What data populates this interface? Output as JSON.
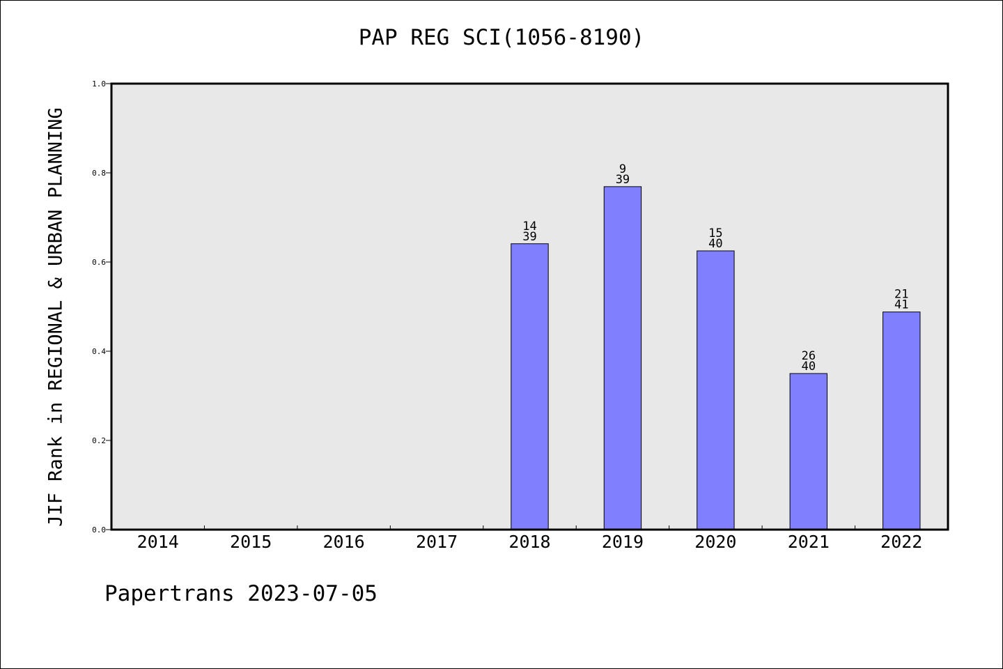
{
  "chart_data": {
    "type": "bar",
    "title": "PAP REG SCI(1056-8190)",
    "ylabel": "JIF Rank in REGIONAL & URBAN PLANNING",
    "xlabel": "",
    "footer": "Papertrans 2023-07-05",
    "categories": [
      "2014",
      "2015",
      "2016",
      "2017",
      "2018",
      "2019",
      "2020",
      "2021",
      "2022"
    ],
    "values": [
      null,
      null,
      null,
      null,
      0.641,
      0.769,
      0.625,
      0.35,
      0.488
    ],
    "rank_labels": [
      null,
      null,
      null,
      null,
      {
        "rank": "14",
        "total": "39"
      },
      {
        "rank": "9",
        "total": "39"
      },
      {
        "rank": "15",
        "total": "40"
      },
      {
        "rank": "26",
        "total": "40"
      },
      {
        "rank": "21",
        "total": "41"
      }
    ],
    "yticks": [
      "0.0",
      "0.2",
      "0.4",
      "0.6",
      "0.8",
      "1.0"
    ],
    "ylim": [
      0,
      1
    ],
    "grid": false,
    "colors": {
      "bar": "#8080ff",
      "plot_background": "#e8e8e8",
      "axis": "#000000"
    }
  }
}
